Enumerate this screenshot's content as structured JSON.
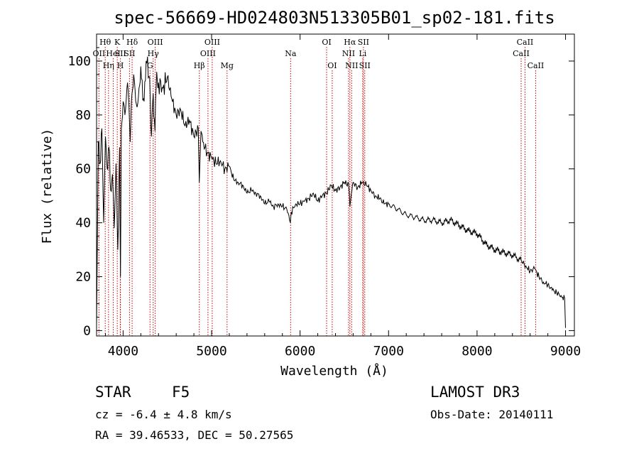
{
  "chart_data": {
    "type": "line",
    "title": "spec-56669-HD024803N513305B01_sp02-181.fits",
    "xlabel": "Wavelength (Å)",
    "ylabel": "Flux (relative)",
    "xlim": [
      3700,
      9100
    ],
    "ylim": [
      -2,
      110
    ],
    "x_ticks": [
      4000,
      5000,
      6000,
      7000,
      8000,
      9000
    ],
    "y_ticks": [
      0,
      20,
      40,
      60,
      80,
      100
    ],
    "grid": false,
    "series": [
      {
        "name": "flux",
        "x": [
          3700,
          3720,
          3740,
          3760,
          3780,
          3800,
          3820,
          3840,
          3860,
          3880,
          3900,
          3920,
          3940,
          3960,
          3970,
          3980,
          4000,
          4020,
          4050,
          4080,
          4100,
          4120,
          4150,
          4180,
          4200,
          4230,
          4260,
          4300,
          4320,
          4340,
          4360,
          4380,
          4400,
          4450,
          4500,
          4550,
          4600,
          4650,
          4700,
          4750,
          4800,
          4850,
          4861,
          4880,
          4900,
          4950,
          5000,
          5050,
          5100,
          5150,
          5200,
          5250,
          5300,
          5350,
          5400,
          5450,
          5500,
          5550,
          5600,
          5650,
          5700,
          5750,
          5800,
          5850,
          5890,
          5900,
          5950,
          6000,
          6050,
          6100,
          6150,
          6200,
          6250,
          6300,
          6350,
          6400,
          6450,
          6500,
          6550,
          6563,
          6600,
          6650,
          6700,
          6750,
          6800,
          6850,
          6900,
          6950,
          7000,
          7100,
          7200,
          7300,
          7400,
          7500,
          7600,
          7700,
          7800,
          7900,
          8000,
          8100,
          8200,
          8300,
          8400,
          8500,
          8550,
          8600,
          8650,
          8700,
          8750,
          8800,
          8850,
          8900,
          8950,
          8990,
          9000
        ],
        "y": [
          2,
          70,
          62,
          75,
          40,
          72,
          60,
          68,
          52,
          58,
          38,
          62,
          30,
          68,
          20,
          75,
          85,
          80,
          92,
          70,
          88,
          95,
          84,
          90,
          98,
          86,
          100,
          94,
          72,
          88,
          74,
          96,
          92,
          90,
          94,
          86,
          80,
          82,
          76,
          78,
          72,
          75,
          55,
          74,
          70,
          66,
          64,
          62,
          63,
          60,
          61,
          56,
          55,
          54,
          51,
          52,
          51,
          50,
          47,
          48,
          46,
          47,
          46,
          45,
          40,
          44,
          47,
          47,
          48,
          49,
          51,
          48,
          50,
          51,
          54,
          52,
          53,
          55,
          54,
          46,
          55,
          53,
          55,
          54,
          52,
          50,
          49,
          47,
          47,
          45,
          43,
          42,
          41,
          41,
          40,
          41,
          39,
          37,
          36,
          32,
          30,
          29,
          28,
          26,
          24,
          22,
          23,
          20,
          18,
          17,
          15,
          14,
          13,
          12,
          1
        ]
      }
    ],
    "annotations": [
      {
        "label": "Hθ",
        "x": 3798,
        "row": 1
      },
      {
        "label": "OII",
        "x": 3727,
        "row": 2
      },
      {
        "label": "Hη",
        "x": 3835,
        "row": 3
      },
      {
        "label": "HeI",
        "x": 3889,
        "row": 2
      },
      {
        "label": "K",
        "x": 3934,
        "row": 1
      },
      {
        "label": "SII",
        "x": 3970,
        "row": 2
      },
      {
        "label": "H",
        "x": 3969,
        "row": 3
      },
      {
        "label": "Hδ",
        "x": 4102,
        "row": 1
      },
      {
        "label": "SII",
        "x": 4072,
        "row": 2
      },
      {
        "label": "OIII",
        "x": 4363,
        "row": 1
      },
      {
        "label": "Hγ",
        "x": 4340,
        "row": 2
      },
      {
        "label": "G",
        "x": 4304,
        "row": 3
      },
      {
        "label": "Hβ",
        "x": 4861,
        "row": 3
      },
      {
        "label": "OIII",
        "x": 4959,
        "row": 2
      },
      {
        "label": "OIII",
        "x": 5007,
        "row": 1
      },
      {
        "label": "Mg",
        "x": 5175,
        "row": 3
      },
      {
        "label": "Na",
        "x": 5893,
        "row": 2
      },
      {
        "label": "OI",
        "x": 6300,
        "row": 1
      },
      {
        "label": "OI",
        "x": 6363,
        "row": 3
      },
      {
        "label": "Hα",
        "x": 6563,
        "row": 1
      },
      {
        "label": "NII",
        "x": 6548,
        "row": 2
      },
      {
        "label": "NII",
        "x": 6583,
        "row": 3
      },
      {
        "label": "SII",
        "x": 6716,
        "row": 1
      },
      {
        "label": "Li",
        "x": 6708,
        "row": 2
      },
      {
        "label": "SII",
        "x": 6731,
        "row": 3
      },
      {
        "label": "CaII",
        "x": 8542,
        "row": 1
      },
      {
        "label": "CaII",
        "x": 8498,
        "row": 2
      },
      {
        "label": "CaII",
        "x": 8662,
        "row": 3
      }
    ]
  },
  "footer": {
    "object_type": "STAR",
    "subclass": "F5",
    "survey": "LAMOST DR3",
    "cz": "cz = -6.4 ± 4.8 km/s",
    "obs_date": "Obs-Date: 20140111",
    "coords": "RA =  39.46533, DEC =  50.27565"
  },
  "colors": {
    "line": "#000000",
    "marker_line": "#cc0000"
  }
}
